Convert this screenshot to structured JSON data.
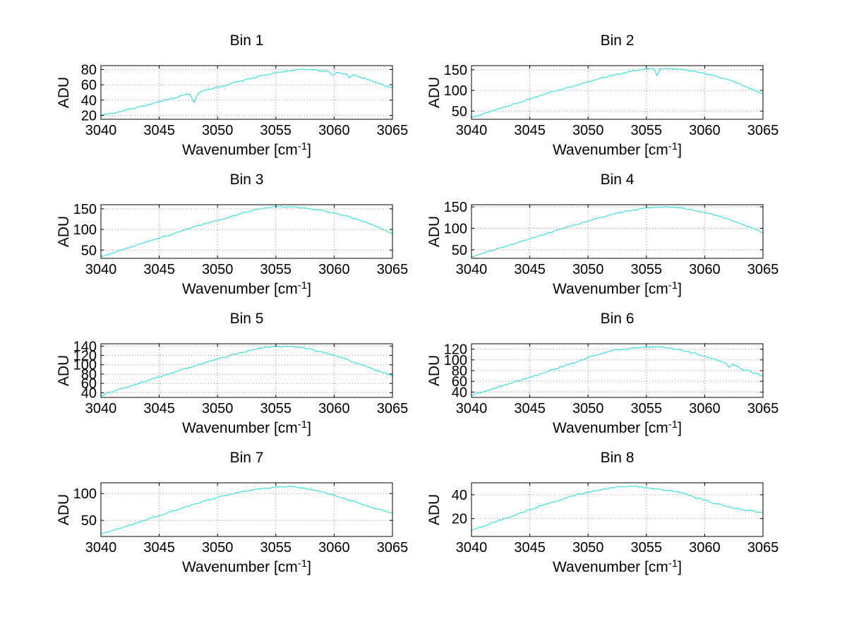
{
  "figure": {
    "background": "#ffffff",
    "line_color": "#3fdcdc",
    "grid_color": "#8a8a8a",
    "axis_color": "#000000",
    "ylabel": "ADU",
    "xlabel_base": "Wavenumber [cm",
    "xlabel_sup": "-1",
    "xlabel_close": "]"
  },
  "chart_data": [
    {
      "type": "line",
      "title": "Bin 1",
      "xlabel": "Wavenumber [cm⁻¹]",
      "ylabel": "ADU",
      "xlim": [
        3040,
        3065
      ],
      "ylim": [
        15,
        85
      ],
      "xticks": [
        3040,
        3045,
        3050,
        3055,
        3060,
        3065
      ],
      "yticks": [
        20,
        40,
        60,
        80
      ],
      "grid": true,
      "noise": 0.9,
      "points": [
        [
          3040,
          20
        ],
        [
          3041,
          23
        ],
        [
          3042,
          26.5
        ],
        [
          3043,
          30
        ],
        [
          3044,
          34
        ],
        [
          3045,
          38
        ],
        [
          3046,
          42
        ],
        [
          3047,
          46
        ],
        [
          3047.6,
          48
        ],
        [
          3048,
          37
        ],
        [
          3048.4,
          50
        ],
        [
          3049,
          53
        ],
        [
          3050,
          57
        ],
        [
          3051,
          61
        ],
        [
          3052,
          65
        ],
        [
          3053,
          69
        ],
        [
          3054,
          72.5
        ],
        [
          3055,
          75.5
        ],
        [
          3056,
          78
        ],
        [
          3057,
          80
        ],
        [
          3058,
          80
        ],
        [
          3059,
          78.5
        ],
        [
          3059.6,
          77
        ],
        [
          3059.9,
          72
        ],
        [
          3060.2,
          76
        ],
        [
          3061,
          74.5
        ],
        [
          3061.3,
          69
        ],
        [
          3061.6,
          73
        ],
        [
          3062,
          71
        ],
        [
          3063,
          66.5
        ],
        [
          3064,
          61.5
        ],
        [
          3065,
          56
        ]
      ]
    },
    {
      "type": "line",
      "title": "Bin 2",
      "xlabel": "Wavenumber [cm⁻¹]",
      "ylabel": "ADU",
      "xlim": [
        3040,
        3065
      ],
      "ylim": [
        30,
        160
      ],
      "xticks": [
        3040,
        3045,
        3050,
        3055,
        3060,
        3065
      ],
      "yticks": [
        50,
        100,
        150
      ],
      "grid": true,
      "noise": 1.5,
      "points": [
        [
          3040,
          34
        ],
        [
          3041,
          43
        ],
        [
          3042,
          52
        ],
        [
          3043,
          61
        ],
        [
          3044,
          70
        ],
        [
          3045,
          79
        ],
        [
          3046,
          88
        ],
        [
          3047,
          97
        ],
        [
          3048,
          105
        ],
        [
          3049,
          113
        ],
        [
          3050,
          121
        ],
        [
          3051,
          129
        ],
        [
          3052,
          136
        ],
        [
          3053,
          142
        ],
        [
          3054,
          148
        ],
        [
          3055,
          152
        ],
        [
          3055.6,
          154
        ],
        [
          3055.9,
          136
        ],
        [
          3056.2,
          153
        ],
        [
          3057,
          153
        ],
        [
          3058,
          151
        ],
        [
          3059,
          147
        ],
        [
          3060,
          141
        ],
        [
          3061,
          134
        ],
        [
          3062,
          126
        ],
        [
          3063,
          116
        ],
        [
          3064,
          104
        ],
        [
          3065,
          92
        ]
      ]
    },
    {
      "type": "line",
      "title": "Bin 3",
      "xlabel": "Wavenumber [cm⁻¹]",
      "ylabel": "ADU",
      "xlim": [
        3040,
        3065
      ],
      "ylim": [
        30,
        160
      ],
      "xticks": [
        3040,
        3045,
        3050,
        3055,
        3060,
        3065
      ],
      "yticks": [
        50,
        100,
        150
      ],
      "grid": true,
      "noise": 1.5,
      "points": [
        [
          3040,
          34
        ],
        [
          3041,
          43
        ],
        [
          3042,
          52
        ],
        [
          3043,
          61
        ],
        [
          3044,
          70
        ],
        [
          3045,
          79
        ],
        [
          3046,
          88
        ],
        [
          3047,
          97
        ],
        [
          3048,
          106
        ],
        [
          3049,
          114
        ],
        [
          3050,
          122
        ],
        [
          3051,
          130
        ],
        [
          3052,
          138
        ],
        [
          3053,
          146
        ],
        [
          3054,
          152
        ],
        [
          3055,
          156
        ],
        [
          3056,
          155
        ],
        [
          3057,
          153
        ],
        [
          3058,
          150
        ],
        [
          3059,
          146
        ],
        [
          3060,
          140
        ],
        [
          3061,
          133
        ],
        [
          3062,
          124
        ],
        [
          3063,
          114
        ],
        [
          3064,
          102
        ],
        [
          3065,
          90
        ]
      ]
    },
    {
      "type": "line",
      "title": "Bin 4",
      "xlabel": "Wavenumber [cm⁻¹]",
      "ylabel": "ADU",
      "xlim": [
        3040,
        3065
      ],
      "ylim": [
        30,
        155
      ],
      "xticks": [
        3040,
        3045,
        3050,
        3055,
        3060,
        3065
      ],
      "yticks": [
        50,
        100,
        150
      ],
      "grid": true,
      "noise": 1.5,
      "points": [
        [
          3040,
          33
        ],
        [
          3041,
          41.5
        ],
        [
          3042,
          50
        ],
        [
          3043,
          58.5
        ],
        [
          3044,
          67
        ],
        [
          3045,
          75.5
        ],
        [
          3046,
          84
        ],
        [
          3047,
          92.5
        ],
        [
          3048,
          101
        ],
        [
          3049,
          109
        ],
        [
          3050,
          117
        ],
        [
          3051,
          125
        ],
        [
          3052,
          132
        ],
        [
          3053,
          138
        ],
        [
          3054,
          143
        ],
        [
          3055,
          148
        ],
        [
          3056,
          150
        ],
        [
          3057,
          149
        ],
        [
          3058,
          147
        ],
        [
          3059,
          143
        ],
        [
          3060,
          137
        ],
        [
          3061,
          130
        ],
        [
          3062,
          122
        ],
        [
          3063,
          112
        ],
        [
          3064,
          101
        ],
        [
          3065,
          90
        ]
      ]
    },
    {
      "type": "line",
      "title": "Bin 5",
      "xlabel": "Wavenumber [cm⁻¹]",
      "ylabel": "ADU",
      "xlim": [
        3040,
        3065
      ],
      "ylim": [
        30,
        145
      ],
      "xticks": [
        3040,
        3045,
        3050,
        3055,
        3060,
        3065
      ],
      "yticks": [
        40,
        60,
        80,
        100,
        120,
        140
      ],
      "grid": true,
      "noise": 1.5,
      "points": [
        [
          3040,
          34
        ],
        [
          3041,
          42
        ],
        [
          3042,
          50
        ],
        [
          3043,
          58
        ],
        [
          3044,
          66
        ],
        [
          3045,
          74
        ],
        [
          3046,
          82
        ],
        [
          3047,
          90
        ],
        [
          3048,
          97
        ],
        [
          3049,
          105
        ],
        [
          3050,
          112
        ],
        [
          3051,
          119
        ],
        [
          3052,
          126
        ],
        [
          3053,
          132
        ],
        [
          3054,
          137
        ],
        [
          3055,
          139
        ],
        [
          3056,
          139
        ],
        [
          3057,
          137
        ],
        [
          3058,
          133
        ],
        [
          3059,
          127
        ],
        [
          3060,
          120
        ],
        [
          3061,
          112
        ],
        [
          3062,
          103
        ],
        [
          3063,
          94
        ],
        [
          3064,
          85
        ],
        [
          3065,
          76
        ]
      ]
    },
    {
      "type": "line",
      "title": "Bin 6",
      "xlabel": "Wavenumber [cm⁻¹]",
      "ylabel": "ADU",
      "xlim": [
        3040,
        3065
      ],
      "ylim": [
        30,
        130
      ],
      "xticks": [
        3040,
        3045,
        3050,
        3055,
        3060,
        3065
      ],
      "yticks": [
        40,
        60,
        80,
        100,
        120
      ],
      "grid": true,
      "noise": 1.5,
      "points": [
        [
          3040,
          34
        ],
        [
          3041,
          40.5
        ],
        [
          3042,
          47
        ],
        [
          3043,
          54
        ],
        [
          3044,
          61
        ],
        [
          3045,
          68
        ],
        [
          3046,
          75
        ],
        [
          3047,
          82
        ],
        [
          3048,
          89
        ],
        [
          3049,
          96
        ],
        [
          3050,
          104
        ],
        [
          3051,
          111
        ],
        [
          3052,
          117
        ],
        [
          3053,
          120
        ],
        [
          3054,
          122
        ],
        [
          3055,
          124
        ],
        [
          3056,
          124
        ],
        [
          3057,
          122
        ],
        [
          3058,
          118
        ],
        [
          3059,
          113
        ],
        [
          3060,
          107
        ],
        [
          3061,
          100
        ],
        [
          3061.8,
          94
        ],
        [
          3062.1,
          86
        ],
        [
          3062.4,
          92
        ],
        [
          3063,
          85
        ],
        [
          3064,
          77
        ],
        [
          3065,
          70
        ]
      ]
    },
    {
      "type": "line",
      "title": "Bin 7",
      "xlabel": "Wavenumber [cm⁻¹]",
      "ylabel": "ADU",
      "xlim": [
        3040,
        3065
      ],
      "ylim": [
        20,
        120
      ],
      "xticks": [
        3040,
        3045,
        3050,
        3055,
        3060,
        3065
      ],
      "yticks": [
        50,
        100
      ],
      "grid": true,
      "noise": 1.2,
      "points": [
        [
          3040,
          25
        ],
        [
          3041,
          31.5
        ],
        [
          3042,
          38
        ],
        [
          3043,
          45
        ],
        [
          3044,
          52
        ],
        [
          3045,
          59
        ],
        [
          3046,
          66
        ],
        [
          3047,
          73
        ],
        [
          3048,
          80
        ],
        [
          3049,
          87
        ],
        [
          3050,
          93
        ],
        [
          3051,
          98
        ],
        [
          3052,
          103
        ],
        [
          3053,
          107
        ],
        [
          3054,
          110
        ],
        [
          3055,
          112
        ],
        [
          3056,
          113
        ],
        [
          3057,
          111
        ],
        [
          3058,
          108
        ],
        [
          3059,
          103
        ],
        [
          3060,
          97
        ],
        [
          3061,
          90
        ],
        [
          3062,
          83
        ],
        [
          3063,
          76
        ],
        [
          3064,
          70
        ],
        [
          3065,
          64
        ]
      ]
    },
    {
      "type": "line",
      "title": "Bin 8",
      "xlabel": "Wavenumber [cm⁻¹]",
      "ylabel": "ADU",
      "xlim": [
        3040,
        3065
      ],
      "ylim": [
        5,
        50
      ],
      "xticks": [
        3040,
        3045,
        3050,
        3055,
        3060,
        3065
      ],
      "yticks": [
        20,
        40
      ],
      "grid": true,
      "noise": 0.6,
      "points": [
        [
          3040,
          10
        ],
        [
          3041,
          13.5
        ],
        [
          3042,
          17
        ],
        [
          3043,
          20.5
        ],
        [
          3044,
          24
        ],
        [
          3045,
          27.5
        ],
        [
          3046,
          31
        ],
        [
          3047,
          34
        ],
        [
          3048,
          37
        ],
        [
          3049,
          40
        ],
        [
          3050,
          42
        ],
        [
          3051,
          44
        ],
        [
          3052,
          46
        ],
        [
          3053,
          47
        ],
        [
          3054,
          47
        ],
        [
          3055,
          46
        ],
        [
          3056,
          45
        ],
        [
          3057,
          43.5
        ],
        [
          3058,
          41.5
        ],
        [
          3059,
          38.5
        ],
        [
          3060,
          35.5
        ],
        [
          3061,
          32.5
        ],
        [
          3062,
          30
        ],
        [
          3063,
          28
        ],
        [
          3064,
          26.5
        ],
        [
          3065,
          25
        ]
      ]
    }
  ]
}
